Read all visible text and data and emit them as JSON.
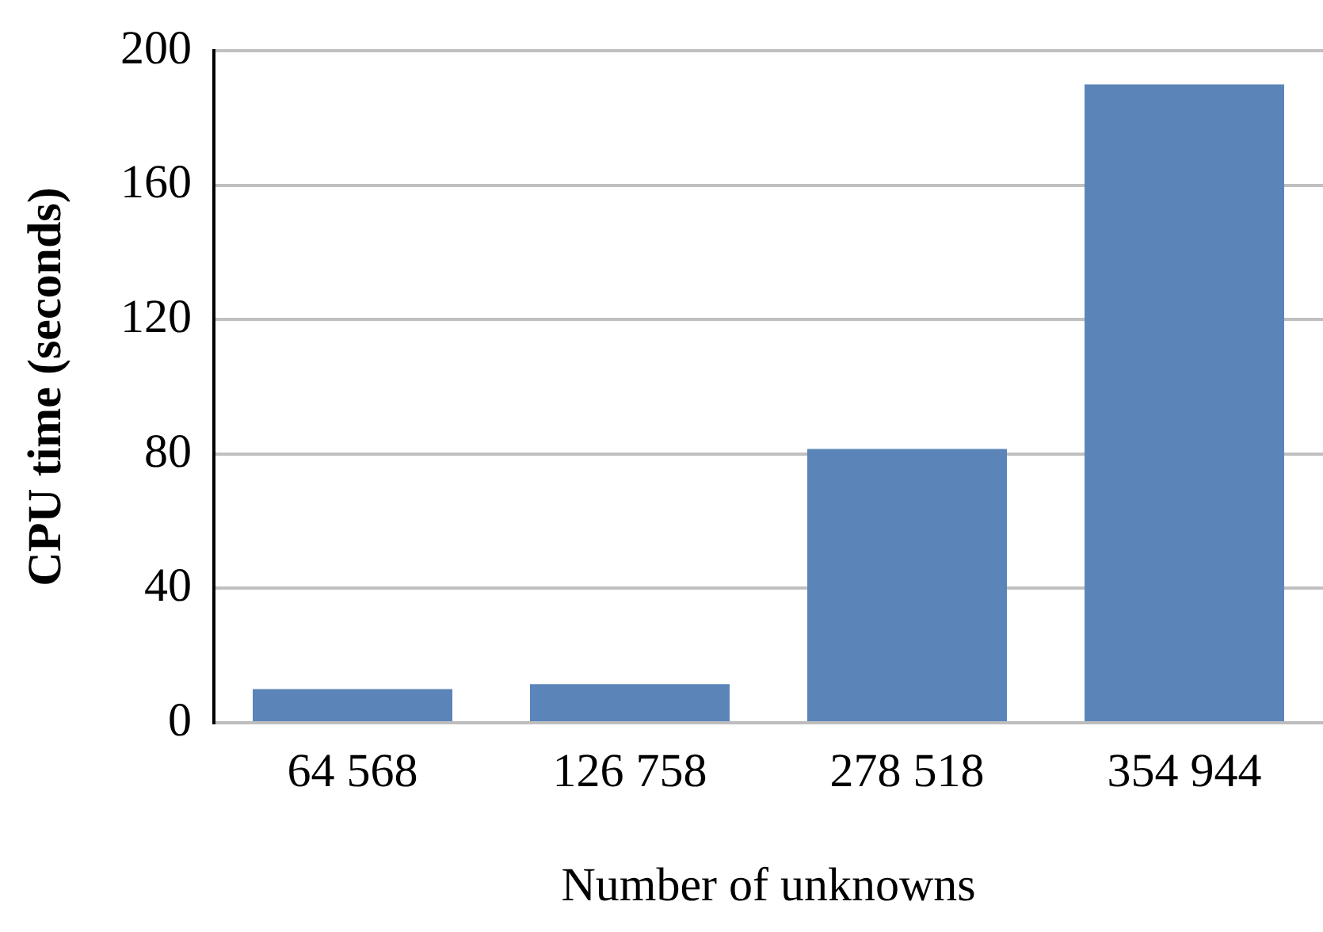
{
  "chart_data": {
    "type": "bar",
    "xlabel": "Number of unknowns",
    "ylabel": "CPU time (seconds)",
    "categories": [
      "64 568",
      "126 758",
      "278 518",
      "354 944"
    ],
    "values": [
      10,
      11.5,
      81.5,
      190
    ],
    "color": "#5b85b9",
    "ylim": [
      0,
      200
    ],
    "yticks": [
      0,
      40,
      80,
      120,
      160,
      200
    ],
    "grid": "y"
  }
}
